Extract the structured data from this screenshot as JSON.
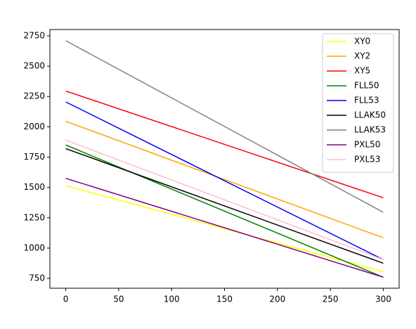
{
  "chart_data": {
    "type": "line",
    "x": [
      0,
      300
    ],
    "series": [
      {
        "name": "XY0",
        "color": "#ffff00",
        "values": [
          1515,
          805
        ]
      },
      {
        "name": "XY2",
        "color": "#ffa500",
        "values": [
          2045,
          1085
        ]
      },
      {
        "name": "XY5",
        "color": "#ff0000",
        "values": [
          2295,
          1415
        ]
      },
      {
        "name": "FLL50",
        "color": "#008000",
        "values": [
          1850,
          760
        ]
      },
      {
        "name": "FLL53",
        "color": "#0000ff",
        "values": [
          2205,
          905
        ]
      },
      {
        "name": "LLAK50",
        "color": "#000000",
        "values": [
          1820,
          875
        ]
      },
      {
        "name": "LLAK53",
        "color": "#808080",
        "values": [
          2710,
          1295
        ]
      },
      {
        "name": "PXL50",
        "color": "#800080",
        "values": [
          1575,
          760
        ]
      },
      {
        "name": "PXL53",
        "color": "#ffc0cb",
        "values": [
          1890,
          905
        ]
      }
    ],
    "xlim": [
      -15,
      315
    ],
    "ylim": [
      669,
      2802
    ],
    "xticks": [
      0,
      50,
      100,
      150,
      200,
      250,
      300
    ],
    "yticks": [
      750,
      1000,
      1250,
      1500,
      1750,
      2000,
      2250,
      2500,
      2750
    ],
    "legend": "upper right",
    "grid": false
  }
}
